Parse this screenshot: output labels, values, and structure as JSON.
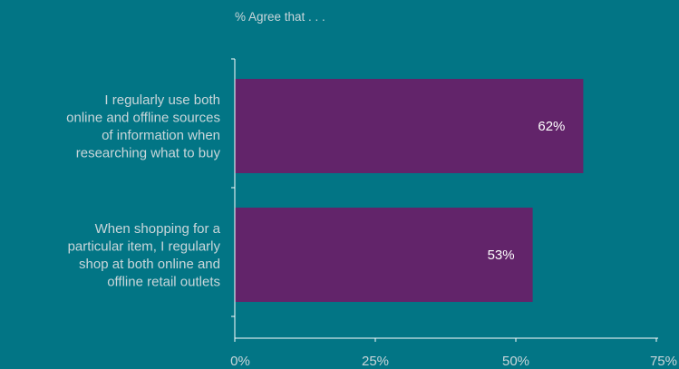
{
  "chart_data": {
    "type": "bar",
    "orientation": "horizontal",
    "title": "% Agree that . . .",
    "categories": [
      "I regularly use both online and offline sources of information when researching what to buy",
      "When shopping for a particular item, I regularly shop at both online and offline retail outlets"
    ],
    "category_lines": [
      [
        "I regularly use both",
        "online and offline sources",
        "of information when",
        "researching what to buy"
      ],
      [
        "When shopping for a",
        "particular item, I regularly",
        "shop at both online and",
        "offline retail outlets"
      ]
    ],
    "values": [
      62,
      53
    ],
    "data_labels": [
      "62%",
      "53%"
    ],
    "xlim": [
      0,
      75
    ],
    "xticks": [
      0,
      25,
      50,
      75
    ],
    "xtick_labels": [
      "0%",
      "25%",
      "50%",
      "75%"
    ],
    "grid": false,
    "legend": "none"
  },
  "colors": {
    "background": "#027585",
    "bar": "#62246a",
    "text": "#c9d6da",
    "data_label": "#ffffff",
    "axis": "#ffffff"
  }
}
